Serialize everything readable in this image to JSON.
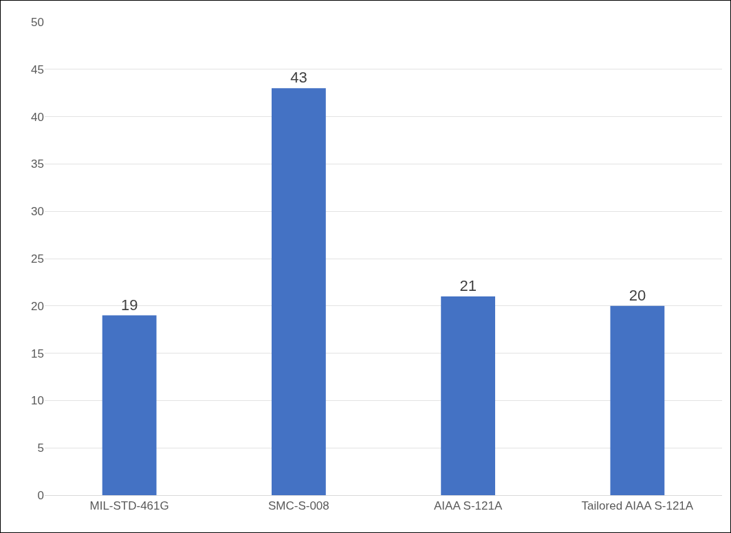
{
  "chart_data": {
    "type": "bar",
    "categories": [
      "MIL-STD-461G",
      "SMC-S-008",
      "AIAA S-121A",
      "Tailored AIAA S-121A"
    ],
    "values": [
      19,
      43,
      21,
      20
    ],
    "color": "#4472c4",
    "data_labels": true,
    "ylim": [
      0,
      50
    ],
    "yticks": [
      0,
      5,
      10,
      15,
      20,
      25,
      30,
      35,
      40,
      45,
      50
    ],
    "grid": "y"
  }
}
